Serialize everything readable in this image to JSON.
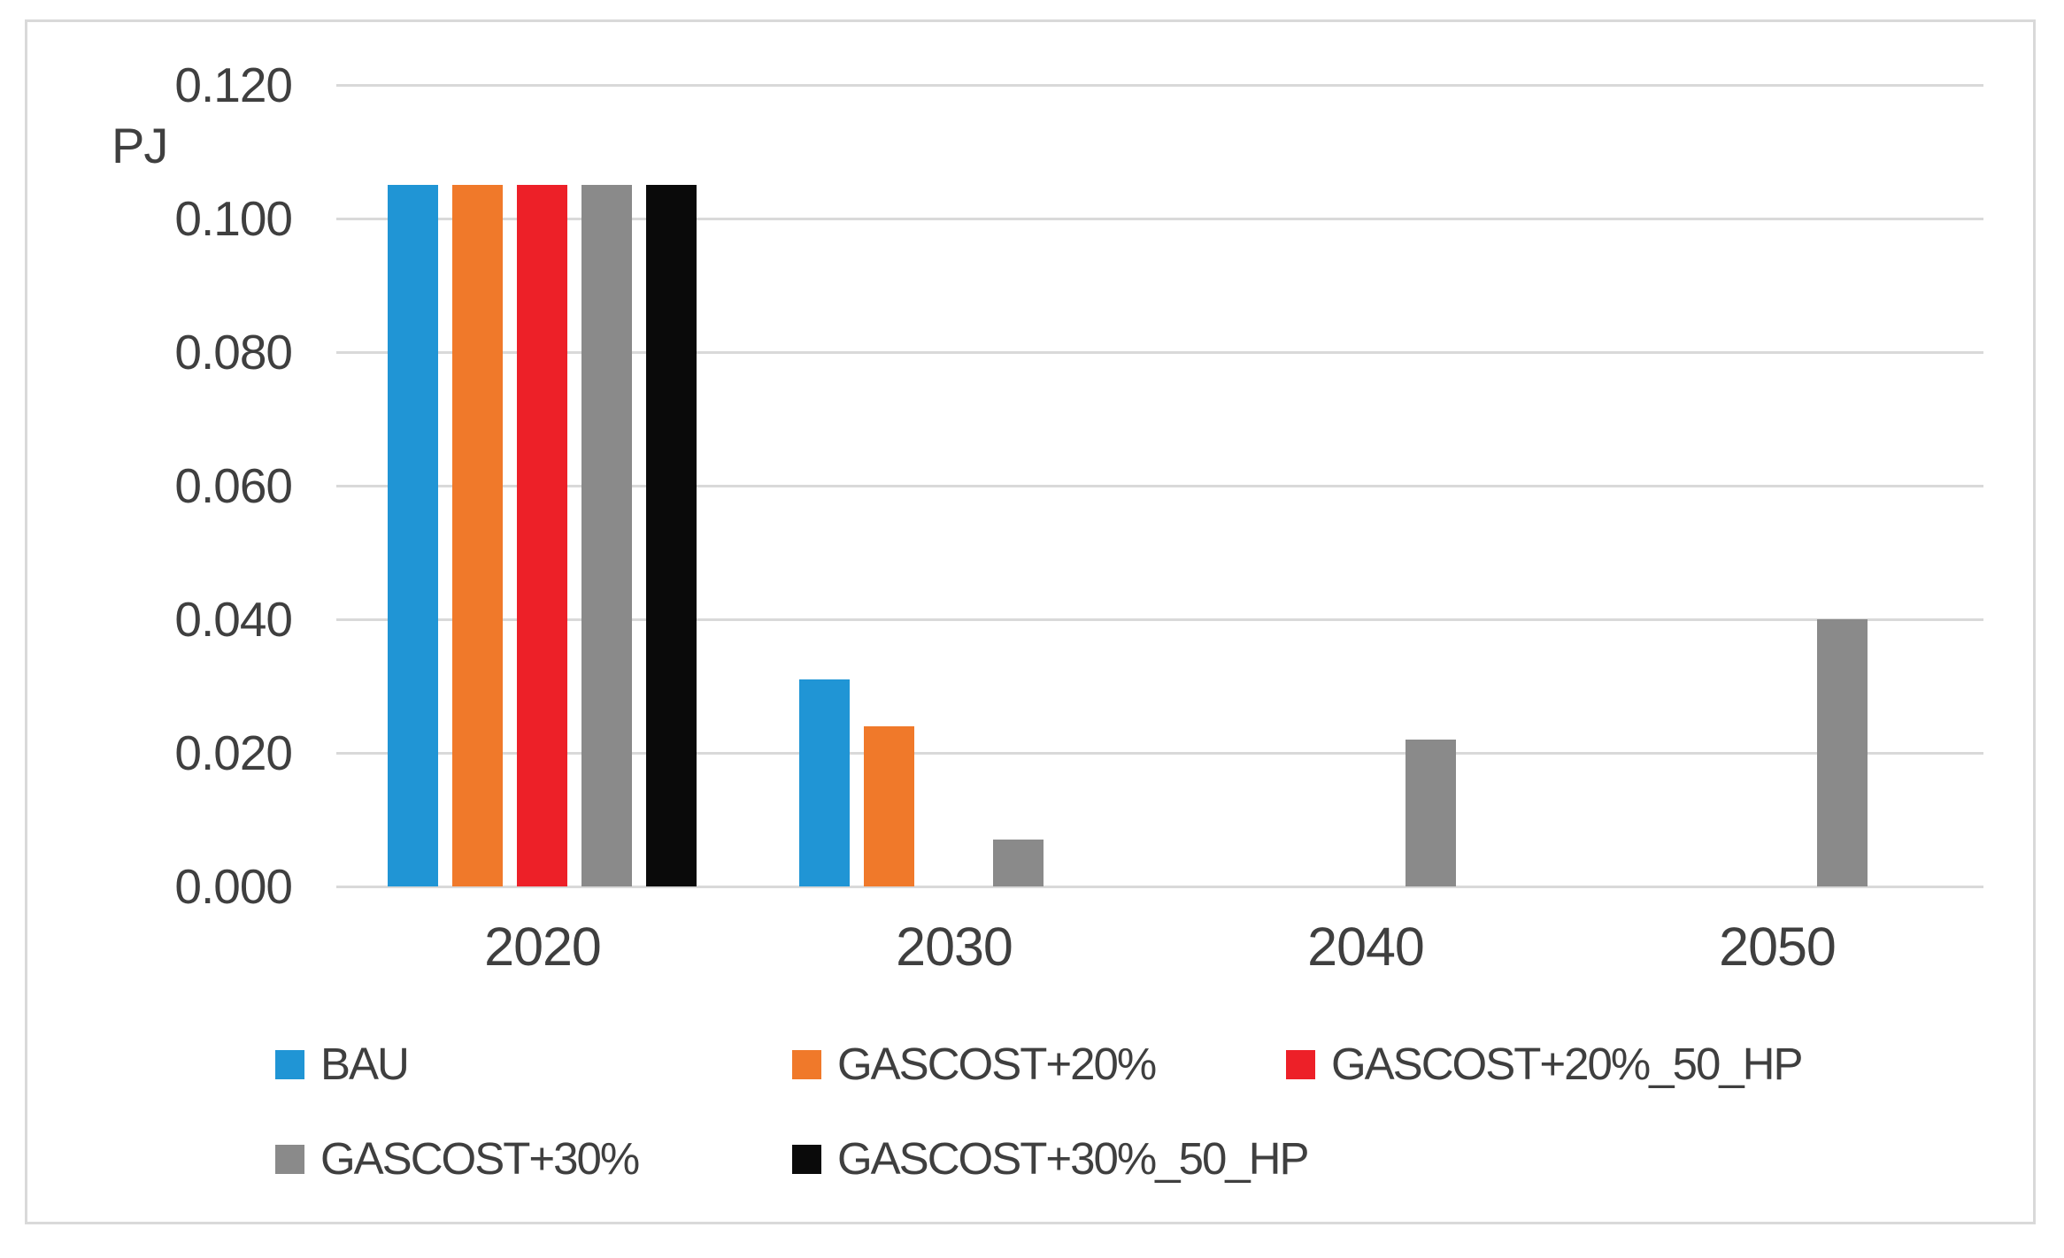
{
  "chart_data": {
    "type": "bar",
    "title": "",
    "ylabel": "PJ",
    "xlabel": "",
    "categories": [
      "2020",
      "2030",
      "2040",
      "2050"
    ],
    "series": [
      {
        "name": "BAU",
        "color": "#2095d5",
        "values": [
          0.105,
          0.031,
          0,
          0
        ]
      },
      {
        "name": "GASCOST+20%",
        "color": "#f0792a",
        "values": [
          0.105,
          0.024,
          0,
          0
        ]
      },
      {
        "name": "GASCOST+20%_50_HP",
        "color": "#ed2028",
        "values": [
          0.105,
          0,
          0,
          0
        ]
      },
      {
        "name": "GASCOST+30%",
        "color": "#8a8a8a",
        "values": [
          0.105,
          0.007,
          0.022,
          0.04
        ]
      },
      {
        "name": "GASCOST+30%_50_HP",
        "color": "#0a0a0a",
        "values": [
          0.105,
          0,
          0,
          0
        ]
      }
    ],
    "y_ticks": [
      "0.120",
      "0.100",
      "0.080",
      "0.060",
      "0.040",
      "0.020",
      "0.000"
    ],
    "ylim": [
      0,
      0.12
    ],
    "grid": true,
    "gridline_color": "#d9d9d9",
    "text_color": "#3f3f3f",
    "legend_position": "bottom",
    "legend_rows": [
      [
        "BAU",
        "GASCOST+20%",
        "GASCOST+20%_50_HP"
      ],
      [
        "GASCOST+30%",
        "GASCOST+30%_50_HP"
      ]
    ]
  }
}
